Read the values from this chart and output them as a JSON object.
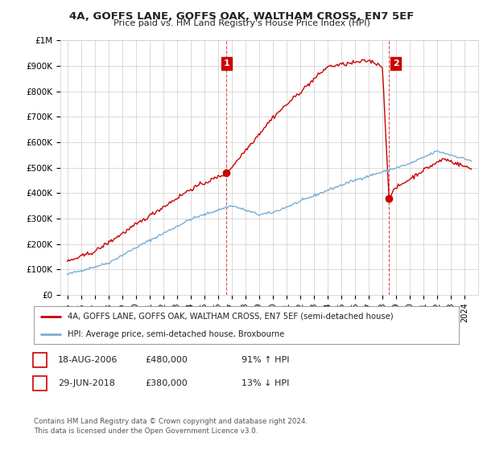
{
  "title": "4A, GOFFS LANE, GOFFS OAK, WALTHAM CROSS, EN7 5EF",
  "subtitle": "Price paid vs. HM Land Registry's House Price Index (HPI)",
  "ylim": [
    0,
    1000000
  ],
  "yticks": [
    0,
    100000,
    200000,
    300000,
    400000,
    500000,
    600000,
    700000,
    800000,
    900000,
    1000000
  ],
  "ytick_labels": [
    "£0",
    "£100K",
    "£200K",
    "£300K",
    "£400K",
    "£500K",
    "£600K",
    "£700K",
    "£800K",
    "£900K",
    "£1M"
  ],
  "red_color": "#cc0000",
  "blue_color": "#7aaed6",
  "marker1_date": 2006.63,
  "marker1_price": 480000,
  "marker1_label": "1",
  "marker2_date": 2018.49,
  "marker2_price": 380000,
  "marker2_label": "2",
  "legend_line1": "4A, GOFFS LANE, GOFFS OAK, WALTHAM CROSS, EN7 5EF (semi-detached house)",
  "legend_line2": "HPI: Average price, semi-detached house, Broxbourne",
  "note1_label": "1",
  "note1_date": "18-AUG-2006",
  "note1_price": "£480,000",
  "note1_hpi": "91% ↑ HPI",
  "note2_label": "2",
  "note2_date": "29-JUN-2018",
  "note2_price": "£380,000",
  "note2_hpi": "13% ↓ HPI",
  "footer": "Contains HM Land Registry data © Crown copyright and database right 2024.\nThis data is licensed under the Open Government Licence v3.0.",
  "background_color": "#ffffff",
  "grid_color": "#cccccc"
}
